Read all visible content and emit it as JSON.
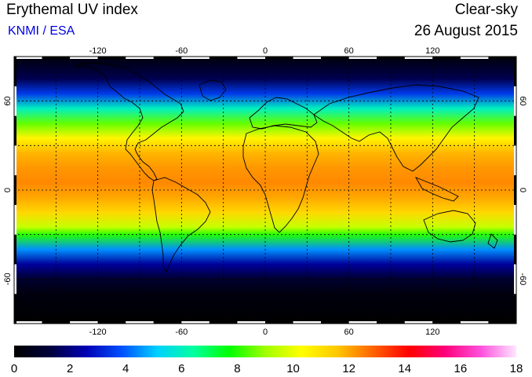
{
  "header": {
    "title": "Erythemal UV index",
    "subtitle": "KNMI / ESA",
    "condition": "Clear-sky",
    "date": "26 August 2015"
  },
  "map": {
    "projection": "equirectangular",
    "lon_range": [
      -180,
      180
    ],
    "lat_range": [
      -90,
      90
    ],
    "lon_ticks": [
      -120,
      -60,
      0,
      60,
      120
    ],
    "lat_ticks": [
      60,
      0,
      -60
    ],
    "grid": "dotted",
    "grid_color": "#000000"
  },
  "colorbar": {
    "min": 0,
    "max": 18,
    "tick_labels": [
      "0",
      "2",
      "4",
      "6",
      "8",
      "10",
      "12",
      "14",
      "16",
      "18"
    ],
    "colors": [
      "#000000",
      "#00003c",
      "#0000b4",
      "#0050ff",
      "#00d2ff",
      "#00ffa0",
      "#00ff00",
      "#a0ff00",
      "#ffff00",
      "#ffc800",
      "#ff6400",
      "#ff0000",
      "#ff0078",
      "#ff50dc",
      "#ffe6ff"
    ]
  },
  "uv_profile": {
    "lat": [
      90,
      75,
      65,
      55,
      45,
      35,
      25,
      15,
      5,
      -5,
      -15,
      -25,
      -30,
      -40,
      -50,
      -60,
      -70,
      -90
    ],
    "uv": [
      0.2,
      1.5,
      3.5,
      6.0,
      8.5,
      10.5,
      11.8,
      12.2,
      12.4,
      12.0,
      11.2,
      9.5,
      8.0,
      4.5,
      2.3,
      1.0,
      0.3,
      0.0
    ]
  }
}
